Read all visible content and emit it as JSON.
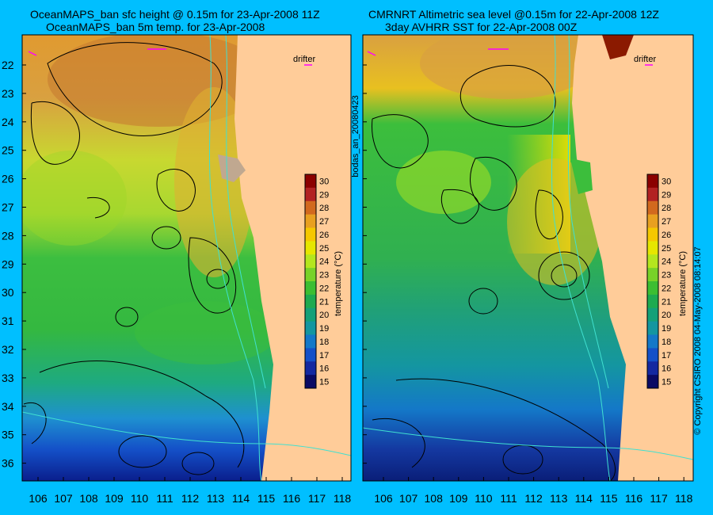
{
  "left_panel": {
    "title_line1": "OceanMAPS_ban sfc height @ 0.15m for 23-Apr-2008 11Z",
    "title_line2": "OceanMAPS_ban 5m temp. for 23-Apr-2008"
  },
  "right_panel": {
    "title_line1": "CMRNRT Altimetric sea level  @0.15m  for 22-Apr-2008 12Z",
    "title_line2": "3day AVHRR SST for 22-Apr-2008 00Z"
  },
  "drifter_label": "drifter",
  "center_label": "bodas_an_20080423",
  "side_label": "© Copyright CSIRO 2008   04-May-2008 08:14:07",
  "colorbar": {
    "label": "temperature (°C)",
    "ticks": [
      "30",
      "29",
      "28",
      "27",
      "26",
      "25",
      "24",
      "23",
      "22",
      "21",
      "20",
      "19",
      "18",
      "17",
      "16",
      "15"
    ],
    "colors": [
      "#8b0000",
      "#b22222",
      "#d2691e",
      "#e8a020",
      "#f5c800",
      "#e6e600",
      "#b4e61e",
      "#78d228",
      "#3cbe32",
      "#1eaa50",
      "#14a078",
      "#1496a0",
      "#1478c8",
      "#1450c8",
      "#1428a0",
      "#0a0a64"
    ]
  },
  "axes": {
    "lat_ticks": [
      "22",
      "23",
      "24",
      "25",
      "26",
      "27",
      "28",
      "29",
      "30",
      "31",
      "32",
      "33",
      "34",
      "35",
      "36"
    ],
    "lon_ticks": [
      "106",
      "107",
      "108",
      "109",
      "110",
      "111",
      "112",
      "113",
      "114",
      "115",
      "116",
      "117",
      "118"
    ]
  },
  "colors": {
    "background": "#00bfff",
    "land": "#ffcc99",
    "contour_ssh": "#000000",
    "isobath": "#40e0d0",
    "drifter": "#ff00ff"
  }
}
